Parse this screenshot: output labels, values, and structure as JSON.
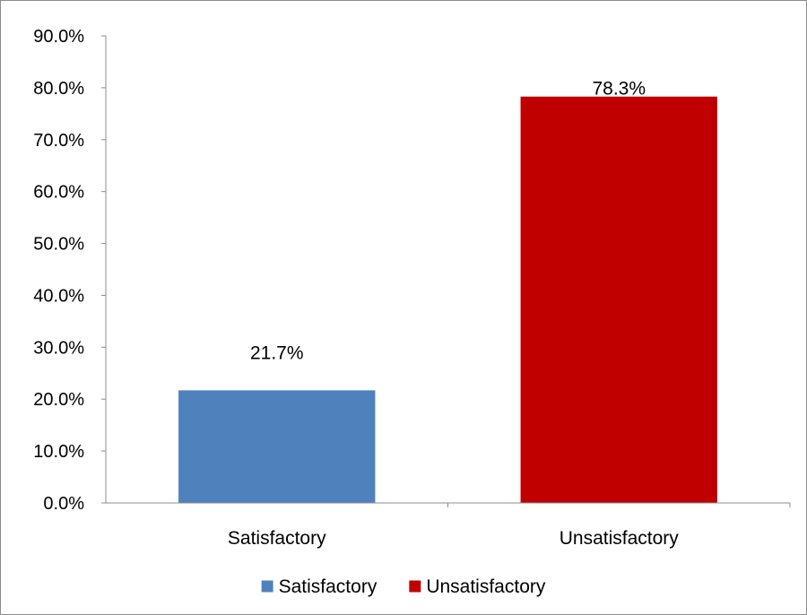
{
  "chart_data": {
    "type": "bar",
    "categories": [
      "Satisfactory",
      "Unsatisfactory"
    ],
    "values": [
      21.7,
      78.3
    ],
    "data_labels": [
      "21.7%",
      "78.3%"
    ],
    "colors": [
      "#4f81bd",
      "#c00000"
    ],
    "ylim": [
      0,
      90
    ],
    "yticks": [
      0,
      10,
      20,
      30,
      40,
      50,
      60,
      70,
      80,
      90
    ],
    "ytick_labels": [
      "0.0%",
      "10.0%",
      "20.0%",
      "30.0%",
      "40.0%",
      "50.0%",
      "60.0%",
      "70.0%",
      "80.0%",
      "90.0%"
    ],
    "grid": false,
    "legend": {
      "placement": "bottom",
      "entries": [
        "Satisfactory",
        "Unsatisfactory"
      ]
    }
  }
}
